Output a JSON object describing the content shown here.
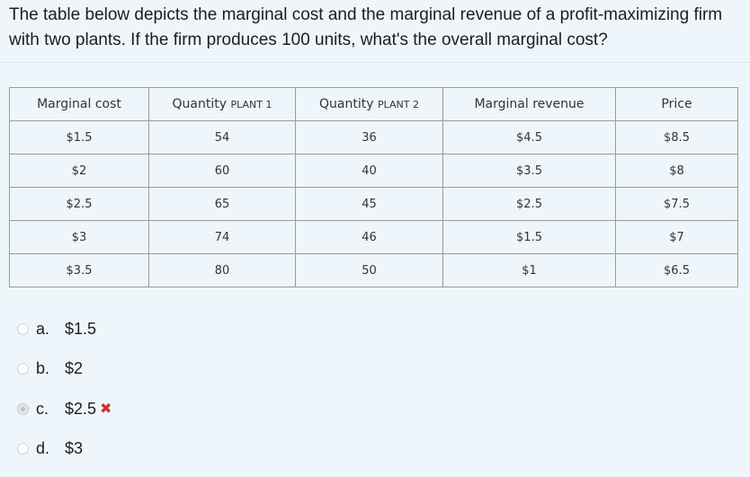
{
  "question": "The table below depicts the marginal cost and the marginal revenue of a profit-maximizing firm with two plants. If the firm produces 100 units, what's the overall marginal cost?",
  "table": {
    "headers": [
      {
        "main": "Marginal cost",
        "sub": ""
      },
      {
        "main": "Quantity ",
        "sub": "PLANT 1"
      },
      {
        "main": "Quantity ",
        "sub": "PLANT 2"
      },
      {
        "main": "Marginal revenue",
        "sub": ""
      },
      {
        "main": "Price",
        "sub": ""
      }
    ],
    "rows": [
      [
        "$1.5",
        "54",
        "36",
        "$4.5",
        "$8.5"
      ],
      [
        "$2",
        "60",
        "40",
        "$3.5",
        "$8"
      ],
      [
        "$2.5",
        "65",
        "45",
        "$2.5",
        "$7.5"
      ],
      [
        "$3",
        "74",
        "46",
        "$1.5",
        "$7"
      ],
      [
        "$3.5",
        "80",
        "50",
        "$1",
        "$6.5"
      ]
    ]
  },
  "options": [
    {
      "letter": "a.",
      "text": "$1.5",
      "selected": false,
      "marked_wrong": false
    },
    {
      "letter": "b.",
      "text": "$2",
      "selected": false,
      "marked_wrong": false
    },
    {
      "letter": "c.",
      "text": "$2.5",
      "selected": true,
      "marked_wrong": true
    },
    {
      "letter": "d.",
      "text": "$3",
      "selected": false,
      "marked_wrong": false
    }
  ],
  "icons": {
    "wrong_mark": "✖"
  },
  "colors": {
    "background": "#eef6fb",
    "wrong": "#d0312d"
  }
}
